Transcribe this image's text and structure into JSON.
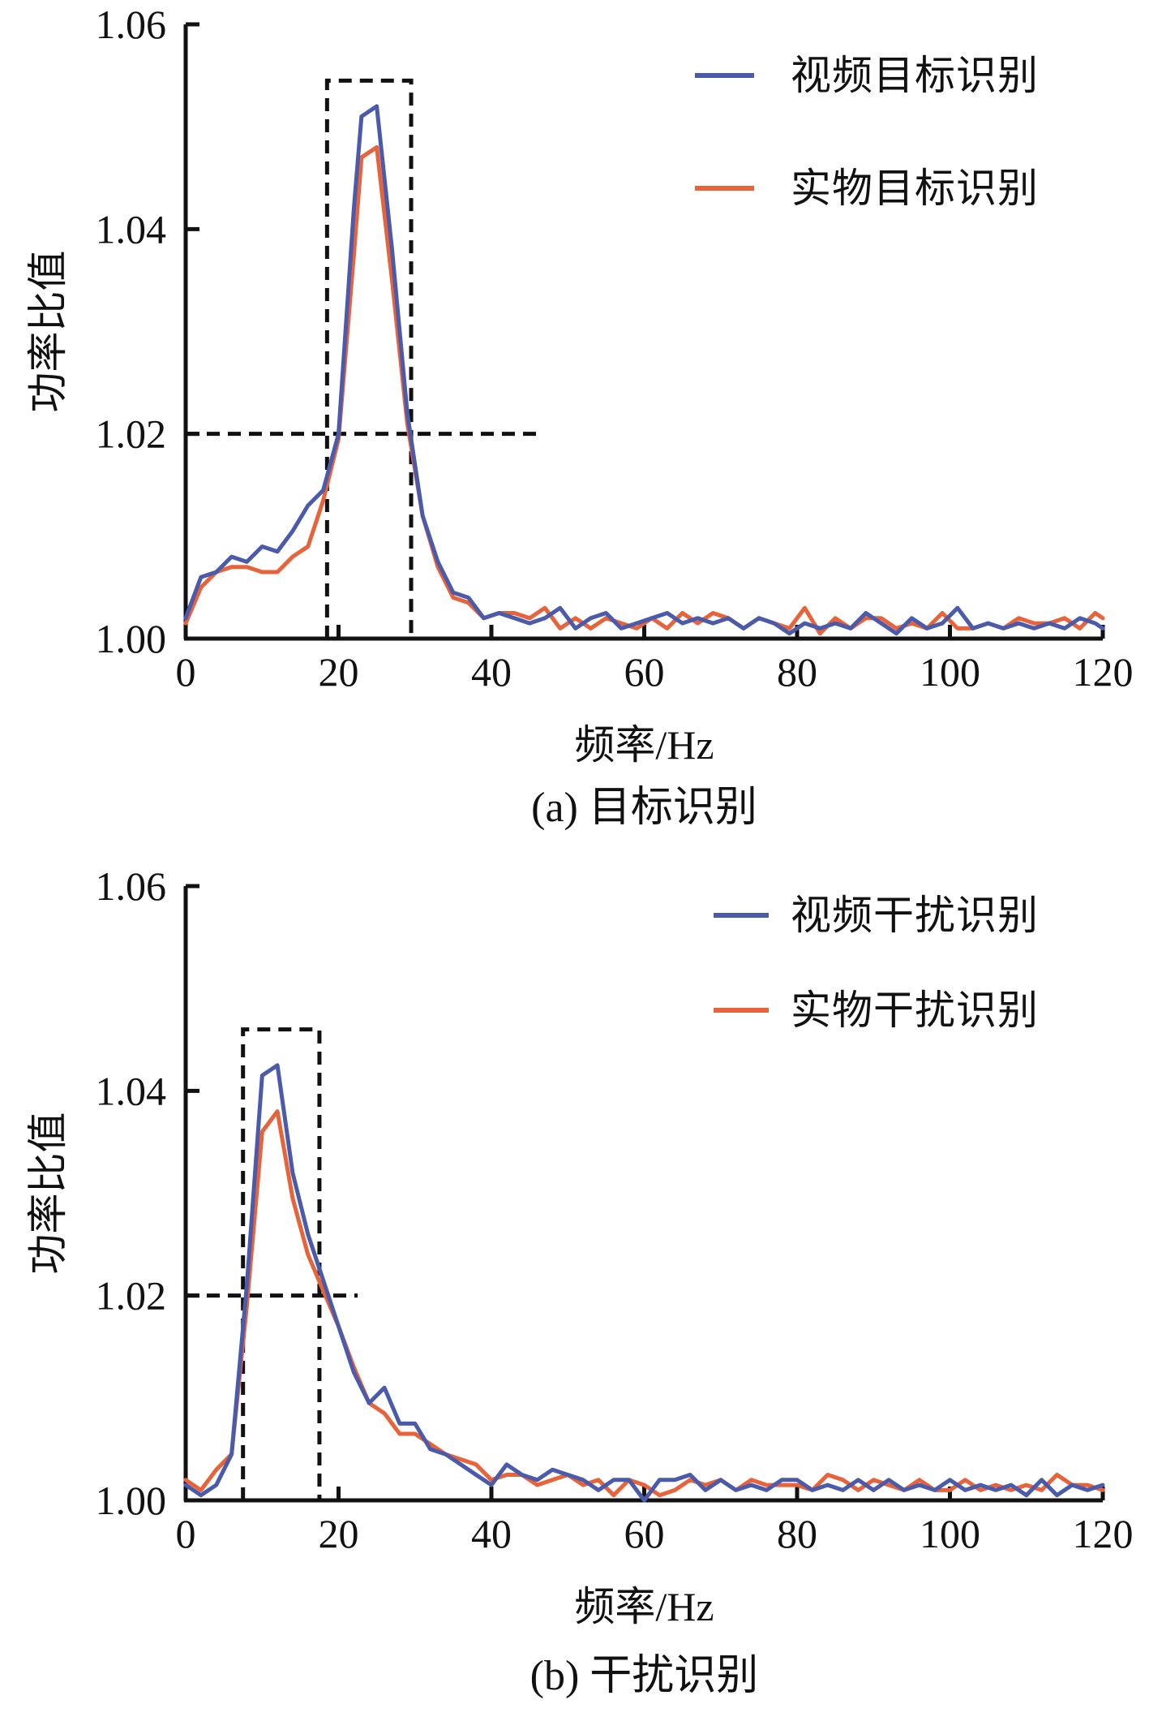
{
  "colors": {
    "video": "#4a5bab",
    "real": "#e8623a",
    "guide": "#111111",
    "axis": "#111111"
  },
  "chart_data": [
    {
      "type": "line",
      "caption": "(a) 目标识别",
      "xlabel": "频率/Hz",
      "ylabel": "功率比值",
      "xlim": [
        0,
        120
      ],
      "ylim": [
        1.0,
        1.06
      ],
      "xticks": [
        "0",
        "20",
        "40",
        "60",
        "80",
        "100",
        "120"
      ],
      "yticks": [
        "1.00",
        "1.02",
        "1.04",
        "1.06"
      ],
      "legend_position": "top-right",
      "guide_box": {
        "x0": 18.5,
        "x1": 29.5,
        "y_top": 1.0545
      },
      "guide_threshold": {
        "y": 1.02,
        "x_end": 46.5
      },
      "series": [
        {
          "name": "视频目标识别",
          "color_key": "video",
          "x": [
            0,
            2,
            4,
            6,
            8,
            10,
            12,
            14,
            16,
            18,
            20,
            22,
            23,
            25,
            27,
            29,
            31,
            33,
            35,
            37,
            39,
            41,
            43,
            45,
            47,
            49,
            51,
            53,
            55,
            57,
            59,
            61,
            63,
            65,
            67,
            69,
            71,
            73,
            75,
            77,
            79,
            81,
            83,
            85,
            87,
            89,
            91,
            93,
            95,
            97,
            99,
            101,
            103,
            105,
            107,
            109,
            111,
            113,
            115,
            117,
            119,
            120
          ],
          "y": [
            1.002,
            1.006,
            1.0065,
            1.008,
            1.0075,
            1.009,
            1.0085,
            1.0105,
            1.013,
            1.0145,
            1.02,
            1.042,
            1.051,
            1.052,
            1.038,
            1.022,
            1.012,
            1.0075,
            1.0045,
            1.004,
            1.002,
            1.0025,
            1.002,
            1.0015,
            1.002,
            1.003,
            1.001,
            1.002,
            1.0025,
            1.001,
            1.0015,
            1.002,
            1.0025,
            1.0015,
            1.002,
            1.0015,
            1.002,
            1.001,
            1.002,
            1.0015,
            1.0005,
            1.0015,
            1.001,
            1.0015,
            1.001,
            1.0025,
            1.0015,
            1.0005,
            1.002,
            1.001,
            1.0015,
            1.003,
            1.001,
            1.0015,
            1.001,
            1.0015,
            1.001,
            1.0015,
            1.001,
            1.002,
            1.0015,
            1.001
          ]
        },
        {
          "name": "实物目标识别",
          "color_key": "real",
          "x": [
            0,
            2,
            4,
            6,
            8,
            10,
            12,
            14,
            16,
            18,
            20,
            22,
            23,
            25,
            27,
            29,
            31,
            33,
            35,
            37,
            39,
            41,
            43,
            45,
            47,
            49,
            51,
            53,
            55,
            57,
            59,
            61,
            63,
            65,
            67,
            69,
            71,
            73,
            75,
            77,
            79,
            81,
            83,
            85,
            87,
            89,
            91,
            93,
            95,
            97,
            99,
            101,
            103,
            105,
            107,
            109,
            111,
            113,
            115,
            117,
            119,
            120
          ],
          "y": [
            1.0015,
            1.005,
            1.0065,
            1.007,
            1.007,
            1.0065,
            1.0065,
            1.008,
            1.009,
            1.0135,
            1.0195,
            1.0375,
            1.047,
            1.048,
            1.035,
            1.021,
            1.012,
            1.007,
            1.004,
            1.0035,
            1.002,
            1.0025,
            1.0025,
            1.002,
            1.003,
            1.001,
            1.002,
            1.001,
            1.002,
            1.0015,
            1.001,
            1.002,
            1.001,
            1.0025,
            1.0015,
            1.0025,
            1.002,
            1.001,
            1.002,
            1.0015,
            1.001,
            1.003,
            1.0005,
            1.002,
            1.001,
            1.002,
            1.002,
            1.001,
            1.0015,
            1.001,
            1.0025,
            1.001,
            1.001,
            1.0015,
            1.001,
            1.002,
            1.0015,
            1.0015,
            1.002,
            1.001,
            1.0025,
            1.002
          ]
        }
      ]
    },
    {
      "type": "line",
      "caption": "(b) 干扰识别",
      "xlabel": "频率/Hz",
      "ylabel": "功率比值",
      "xlim": [
        0,
        120
      ],
      "ylim": [
        1.0,
        1.06
      ],
      "xticks": [
        "0",
        "20",
        "40",
        "60",
        "80",
        "100",
        "120"
      ],
      "yticks": [
        "1.00",
        "1.02",
        "1.04",
        "1.06"
      ],
      "legend_position": "top-right",
      "guide_box": {
        "x0": 7.5,
        "x1": 17.5,
        "y_top": 1.046
      },
      "guide_threshold": {
        "y": 1.02,
        "x_end": 22.5
      },
      "series": [
        {
          "name": "视频干扰识别",
          "color_key": "video",
          "x": [
            0,
            2,
            4,
            6,
            8,
            10,
            12,
            14,
            16,
            18,
            20,
            22,
            24,
            26,
            28,
            30,
            32,
            34,
            36,
            38,
            40,
            42,
            44,
            46,
            48,
            50,
            52,
            54,
            56,
            58,
            60,
            62,
            64,
            66,
            68,
            70,
            72,
            74,
            76,
            78,
            80,
            82,
            84,
            86,
            88,
            90,
            92,
            94,
            96,
            98,
            100,
            102,
            104,
            106,
            108,
            110,
            112,
            114,
            116,
            118,
            120
          ],
          "y": [
            1.0015,
            1.0005,
            1.0015,
            1.0045,
            1.021,
            1.0415,
            1.0425,
            1.032,
            1.026,
            1.0215,
            1.017,
            1.0125,
            1.0095,
            1.011,
            1.0075,
            1.0075,
            1.005,
            1.0045,
            1.0035,
            1.0025,
            1.0015,
            1.0035,
            1.0025,
            1.002,
            1.003,
            1.0025,
            1.002,
            1.001,
            1.002,
            1.002,
            1.0,
            1.002,
            1.002,
            1.0025,
            1.001,
            1.002,
            1.001,
            1.0015,
            1.001,
            1.002,
            1.002,
            1.001,
            1.0015,
            1.001,
            1.002,
            1.001,
            1.002,
            1.001,
            1.0015,
            1.001,
            1.002,
            1.001,
            1.0015,
            1.001,
            1.0015,
            1.0005,
            1.002,
            1.0005,
            1.0015,
            1.001,
            1.0015
          ]
        },
        {
          "name": "实物干扰识别",
          "color_key": "real",
          "x": [
            0,
            2,
            4,
            6,
            8,
            10,
            12,
            14,
            16,
            18,
            20,
            22,
            24,
            26,
            28,
            30,
            32,
            34,
            36,
            38,
            40,
            42,
            44,
            46,
            48,
            50,
            52,
            54,
            56,
            58,
            60,
            62,
            64,
            66,
            68,
            70,
            72,
            74,
            76,
            78,
            80,
            82,
            84,
            86,
            88,
            90,
            92,
            94,
            96,
            98,
            100,
            102,
            104,
            106,
            108,
            110,
            112,
            114,
            116,
            118,
            120
          ],
          "y": [
            1.002,
            1.001,
            1.003,
            1.0045,
            1.019,
            1.036,
            1.038,
            1.0295,
            1.024,
            1.0205,
            1.017,
            1.013,
            1.0095,
            1.0085,
            1.0065,
            1.0065,
            1.0055,
            1.0045,
            1.004,
            1.0035,
            1.002,
            1.0025,
            1.0025,
            1.0015,
            1.002,
            1.0025,
            1.0015,
            1.002,
            1.0005,
            1.002,
            1.0015,
            1.0005,
            1.001,
            1.002,
            1.0015,
            1.002,
            1.001,
            1.002,
            1.0015,
            1.0015,
            1.0015,
            1.001,
            1.0025,
            1.002,
            1.001,
            1.002,
            1.0015,
            1.001,
            1.002,
            1.001,
            1.001,
            1.002,
            1.001,
            1.0015,
            1.001,
            1.0015,
            1.001,
            1.0025,
            1.0015,
            1.0015,
            1.001
          ]
        }
      ]
    }
  ]
}
